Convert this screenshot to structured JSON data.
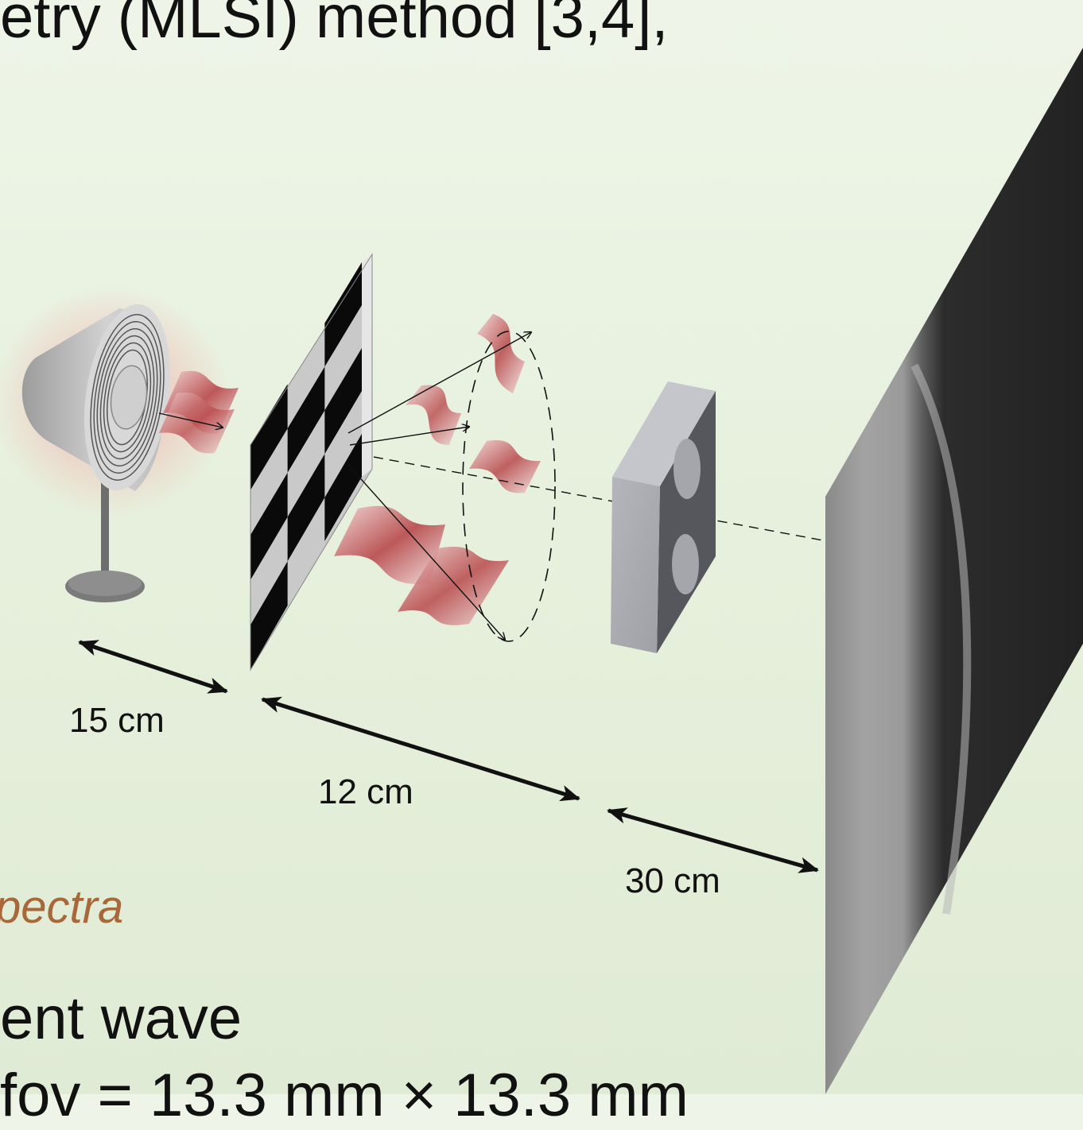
{
  "text": {
    "heading_fragment": "etry (MLSI) method [3,4],",
    "spectra_fragment": "pectra",
    "wave_fragment": "ent wave",
    "fov_fragment": "fov = 13.3 mm × 13.3 mm"
  },
  "distances": {
    "source_to_grating": "15 cm",
    "grating_to_sample": "12 cm",
    "sample_to_screen": "30 cm"
  },
  "colors": {
    "wave": "#b8474a",
    "grating_dark": "#0a0a0a",
    "grating_light": "#c9c9c9",
    "screen_dark": "#2a2a2a",
    "screen_light": "#9a9a9a"
  }
}
